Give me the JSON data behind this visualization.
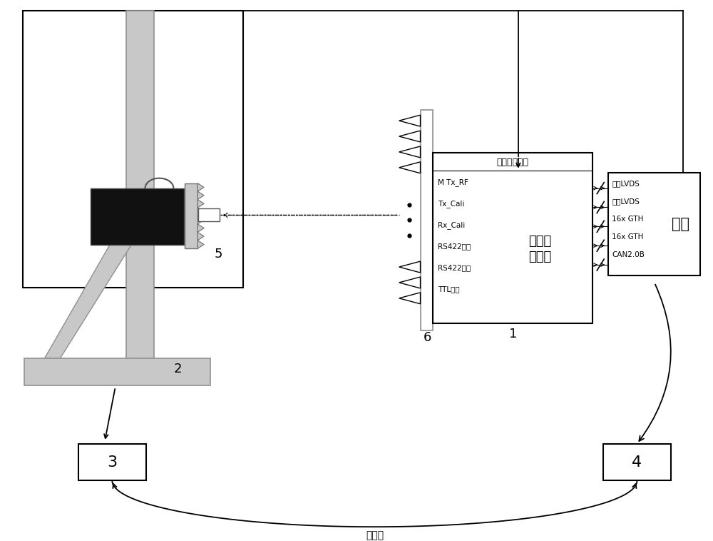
{
  "bg_color": "#ffffff",
  "light_gray": "#c8c8c8",
  "med_gray": "#b0b0b0",
  "dark": "#1a1a1a",
  "antenna_box_label": "公共接收通道",
  "antenna_center_line1": "全数字",
  "antenna_center_line2": "化天线",
  "antenna_signals_left": [
    "M Tx_RF",
    "Tx_Cali",
    "Rx_Cali",
    "RS422上电",
    "RS422电压",
    "TTL温度"
  ],
  "antenna_number": "1",
  "ground_box_label": "地检",
  "ground_signals": [
    "同步LVDS",
    "异步LVDS",
    "16x GTH",
    "16x GTH",
    "CAN2.0B"
  ],
  "box3_label": "3",
  "box4_label": "4",
  "www_label": "万维网",
  "tower_number": "2",
  "probe_number": "5",
  "receive_ant_number": "6"
}
